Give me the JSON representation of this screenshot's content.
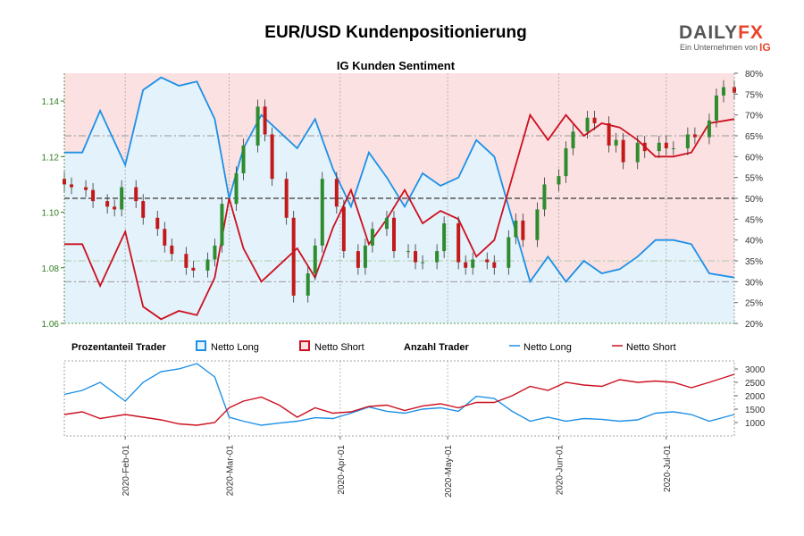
{
  "title": "EUR/USD Kundenpositionierung",
  "subtitle": "IG Kunden Sentiment",
  "logo": {
    "word_a": "DAILY",
    "word_b": "FX",
    "tagline": "Ein Unternehmen von",
    "brand": "IG"
  },
  "legend": {
    "group1": "Prozentanteil Trader",
    "long": "Netto Long",
    "short": "Netto Short",
    "group2": "Anzahl Trader"
  },
  "colors": {
    "long": "#1e90e6",
    "short": "#cc1020",
    "long_fill": "#e3f2fb",
    "short_fill": "#fbe1e1",
    "price_axis": "#2e7d1e",
    "candle_up": "#2e8b2e",
    "candle_down": "#c21a1a",
    "grid": "#aaaaaa"
  },
  "chart_data": [
    {
      "type": "candlestick",
      "name": "EUR/USD",
      "y_left_ticks": [
        "1.06",
        "1.08",
        "1.10",
        "1.12",
        "1.14"
      ],
      "y_left_range": [
        1.06,
        1.15
      ],
      "y_right_ticks": [
        "20%",
        "25%",
        "30%",
        "35%",
        "40%",
        "45%",
        "50%",
        "55%",
        "60%",
        "65%",
        "70%",
        "75%",
        "80%"
      ],
      "y_right_range": [
        20,
        80
      ],
      "x_ticks": [
        "2020-Feb-01",
        "2020-Mar-01",
        "2020-Apr-01",
        "2020-May-01",
        "2020-Jun-01",
        "2020-Jul-01"
      ],
      "x_range": [
        "2020-01-15",
        "2020-07-20"
      ],
      "dashed_levels": [
        {
          "value": 65,
          "color": "#999999"
        },
        {
          "value": 50,
          "color": "#555555"
        },
        {
          "value": 35,
          "color": "#aacfaa"
        },
        {
          "value": 30,
          "color": "#999999"
        }
      ],
      "price": {
        "dates": [
          "2020-01-15",
          "2020-01-17",
          "2020-01-21",
          "2020-01-23",
          "2020-01-27",
          "2020-01-29",
          "2020-01-31",
          "2020-02-04",
          "2020-02-06",
          "2020-02-10",
          "2020-02-12",
          "2020-02-14",
          "2020-02-18",
          "2020-02-20",
          "2020-02-24",
          "2020-02-26",
          "2020-02-28",
          "2020-03-03",
          "2020-03-05",
          "2020-03-09",
          "2020-03-11",
          "2020-03-13",
          "2020-03-17",
          "2020-03-19",
          "2020-03-23",
          "2020-03-25",
          "2020-03-27",
          "2020-03-31",
          "2020-04-02",
          "2020-04-06",
          "2020-04-08",
          "2020-04-10",
          "2020-04-14",
          "2020-04-16",
          "2020-04-20",
          "2020-04-22",
          "2020-04-24",
          "2020-04-28",
          "2020-04-30",
          "2020-05-04",
          "2020-05-06",
          "2020-05-08",
          "2020-05-12",
          "2020-05-14",
          "2020-05-18",
          "2020-05-20",
          "2020-05-22",
          "2020-05-26",
          "2020-05-28",
          "2020-06-01",
          "2020-06-03",
          "2020-06-05",
          "2020-06-09",
          "2020-06-11",
          "2020-06-15",
          "2020-06-17",
          "2020-06-19",
          "2020-06-23",
          "2020-06-25",
          "2020-06-29",
          "2020-07-01",
          "2020-07-03",
          "2020-07-07",
          "2020-07-09",
          "2020-07-13",
          "2020-07-15",
          "2020-07-17",
          "2020-07-20"
        ],
        "close": [
          1.11,
          1.109,
          1.108,
          1.104,
          1.102,
          1.101,
          1.109,
          1.104,
          1.098,
          1.094,
          1.088,
          1.085,
          1.08,
          1.079,
          1.083,
          1.088,
          1.103,
          1.114,
          1.124,
          1.138,
          1.128,
          1.112,
          1.098,
          1.07,
          1.078,
          1.088,
          1.112,
          1.102,
          1.086,
          1.08,
          1.088,
          1.094,
          1.098,
          1.086,
          1.086,
          1.082,
          1.082,
          1.086,
          1.096,
          1.082,
          1.08,
          1.083,
          1.082,
          1.08,
          1.091,
          1.097,
          1.09,
          1.101,
          1.11,
          1.113,
          1.123,
          1.129,
          1.134,
          1.132,
          1.124,
          1.126,
          1.118,
          1.125,
          1.122,
          1.125,
          1.123,
          1.123,
          1.128,
          1.127,
          1.133,
          1.142,
          1.145,
          1.143
        ]
      },
      "percent_long": {
        "dates": [
          "2020-01-15",
          "2020-01-20",
          "2020-01-25",
          "2020-02-01",
          "2020-02-06",
          "2020-02-11",
          "2020-02-16",
          "2020-02-21",
          "2020-02-26",
          "2020-03-01",
          "2020-03-05",
          "2020-03-10",
          "2020-03-15",
          "2020-03-20",
          "2020-03-25",
          "2020-03-30",
          "2020-04-04",
          "2020-04-09",
          "2020-04-14",
          "2020-04-19",
          "2020-04-24",
          "2020-04-29",
          "2020-05-04",
          "2020-05-09",
          "2020-05-14",
          "2020-05-19",
          "2020-05-24",
          "2020-05-29",
          "2020-06-03",
          "2020-06-08",
          "2020-06-13",
          "2020-06-18",
          "2020-06-23",
          "2020-06-28",
          "2020-07-03",
          "2020-07-08",
          "2020-07-13",
          "2020-07-20"
        ],
        "values": [
          61,
          61,
          71,
          58,
          76,
          79,
          77,
          78,
          69,
          50,
          62,
          70,
          66,
          62,
          69,
          57,
          48,
          61,
          55,
          48,
          56,
          53,
          55,
          64,
          60,
          45,
          30,
          36,
          30,
          35,
          32,
          33,
          36,
          40,
          40,
          39,
          32,
          31
        ]
      },
      "percent_short": {
        "dates": [
          "2020-01-15",
          "2020-01-20",
          "2020-01-25",
          "2020-02-01",
          "2020-02-06",
          "2020-02-11",
          "2020-02-16",
          "2020-02-21",
          "2020-02-26",
          "2020-03-01",
          "2020-03-05",
          "2020-03-10",
          "2020-03-15",
          "2020-03-20",
          "2020-03-25",
          "2020-03-30",
          "2020-04-04",
          "2020-04-09",
          "2020-04-14",
          "2020-04-19",
          "2020-04-24",
          "2020-04-29",
          "2020-05-04",
          "2020-05-09",
          "2020-05-14",
          "2020-05-19",
          "2020-05-24",
          "2020-05-29",
          "2020-06-03",
          "2020-06-08",
          "2020-06-13",
          "2020-06-18",
          "2020-06-23",
          "2020-06-28",
          "2020-07-03",
          "2020-07-08",
          "2020-07-13",
          "2020-07-20"
        ],
        "values": [
          39,
          39,
          29,
          42,
          24,
          21,
          23,
          22,
          31,
          50,
          38,
          30,
          34,
          38,
          31,
          43,
          52,
          39,
          45,
          52,
          44,
          47,
          45,
          36,
          40,
          55,
          70,
          64,
          70,
          65,
          68,
          67,
          64,
          60,
          60,
          61,
          68,
          69
        ]
      }
    },
    {
      "type": "line",
      "name": "Anzahl Trader",
      "y_ticks": [
        "1000",
        "1500",
        "2000",
        "2500",
        "3000"
      ],
      "y_range": [
        500,
        3300
      ],
      "series": [
        {
          "name": "Netto Long",
          "dates": [
            "2020-01-15",
            "2020-01-20",
            "2020-01-25",
            "2020-02-01",
            "2020-02-06",
            "2020-02-11",
            "2020-02-16",
            "2020-02-21",
            "2020-02-26",
            "2020-03-01",
            "2020-03-05",
            "2020-03-10",
            "2020-03-15",
            "2020-03-20",
            "2020-03-25",
            "2020-03-30",
            "2020-04-04",
            "2020-04-09",
            "2020-04-14",
            "2020-04-19",
            "2020-04-24",
            "2020-04-29",
            "2020-05-04",
            "2020-05-09",
            "2020-05-14",
            "2020-05-19",
            "2020-05-24",
            "2020-05-29",
            "2020-06-03",
            "2020-06-08",
            "2020-06-13",
            "2020-06-18",
            "2020-06-23",
            "2020-06-28",
            "2020-07-03",
            "2020-07-08",
            "2020-07-13",
            "2020-07-20"
          ],
          "values": [
            2050,
            2200,
            2500,
            1800,
            2500,
            2900,
            3000,
            3200,
            2700,
            1200,
            1050,
            900,
            980,
            1050,
            1180,
            1150,
            1350,
            1580,
            1420,
            1350,
            1500,
            1550,
            1420,
            1980,
            1900,
            1420,
            1050,
            1200,
            1050,
            1150,
            1120,
            1050,
            1100,
            1350,
            1400,
            1300,
            1050,
            1300
          ]
        },
        {
          "name": "Netto Short",
          "dates": [
            "2020-01-15",
            "2020-01-20",
            "2020-01-25",
            "2020-02-01",
            "2020-02-06",
            "2020-02-11",
            "2020-02-16",
            "2020-02-21",
            "2020-02-26",
            "2020-03-01",
            "2020-03-05",
            "2020-03-10",
            "2020-03-15",
            "2020-03-20",
            "2020-03-25",
            "2020-03-30",
            "2020-04-04",
            "2020-04-09",
            "2020-04-14",
            "2020-04-19",
            "2020-04-24",
            "2020-04-29",
            "2020-05-04",
            "2020-05-09",
            "2020-05-14",
            "2020-05-19",
            "2020-05-24",
            "2020-05-29",
            "2020-06-03",
            "2020-06-08",
            "2020-06-13",
            "2020-06-18",
            "2020-06-23",
            "2020-06-28",
            "2020-07-03",
            "2020-07-08",
            "2020-07-13",
            "2020-07-20"
          ],
          "values": [
            1300,
            1400,
            1150,
            1300,
            1200,
            1100,
            950,
            900,
            1000,
            1550,
            1800,
            1950,
            1650,
            1200,
            1550,
            1350,
            1400,
            1600,
            1650,
            1450,
            1620,
            1700,
            1550,
            1750,
            1750,
            2000,
            2350,
            2200,
            2500,
            2400,
            2350,
            2600,
            2500,
            2550,
            2500,
            2300,
            2500,
            2800
          ]
        }
      ]
    }
  ]
}
